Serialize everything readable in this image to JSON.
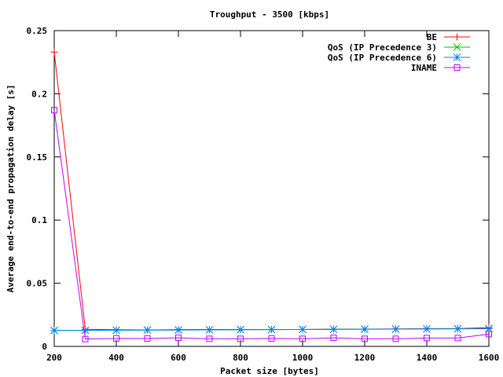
{
  "chart_data": {
    "type": "line",
    "title": "Troughput - 3500 [kbps]",
    "xlabel": "Packet size [bytes]",
    "ylabel": "Average end-to-end propagation delay [s]",
    "xlim": [
      200,
      1600
    ],
    "ylim": [
      0,
      0.25
    ],
    "x_ticks": [
      200,
      400,
      600,
      800,
      1000,
      1200,
      1400,
      1600
    ],
    "y_ticks": [
      0,
      0.05,
      0.1,
      0.15,
      0.2,
      0.25
    ],
    "x_tick_labels": [
      "200",
      "400",
      "600",
      "800",
      "1000",
      "1200",
      "1400",
      "1600"
    ],
    "y_tick_labels": [
      "0",
      "0.05",
      "0.1",
      "0.15",
      "0.2",
      "0.25"
    ],
    "legend_position": "top-right",
    "grid": false,
    "x": [
      200,
      300,
      400,
      500,
      600,
      700,
      800,
      900,
      1000,
      1100,
      1200,
      1300,
      1400,
      1500,
      1600
    ],
    "series": [
      {
        "name": "BE",
        "color": "#ff0000",
        "marker": "plus",
        "values": [
          0.233,
          0.0135,
          0.0132,
          0.013,
          0.0133,
          0.0134,
          0.0134,
          0.0134,
          0.0134,
          0.0136,
          0.0137,
          0.0138,
          0.0141,
          0.0141,
          0.0148
        ]
      },
      {
        "name": "QoS (IP Precedence 3)",
        "color": "#00c000",
        "marker": "cross",
        "values": [
          0.0126,
          0.0127,
          0.0128,
          0.0129,
          0.013,
          0.0131,
          0.0132,
          0.0133,
          0.0134,
          0.0135,
          0.0136,
          0.0137,
          0.0138,
          0.0139,
          0.014
        ]
      },
      {
        "name": "QoS (IP Precedence 6)",
        "color": "#0080ff",
        "marker": "star",
        "values": [
          0.0126,
          0.0127,
          0.0128,
          0.0129,
          0.013,
          0.0131,
          0.0132,
          0.0133,
          0.0134,
          0.0135,
          0.0136,
          0.0137,
          0.0138,
          0.0139,
          0.014
        ]
      },
      {
        "name": "INAME",
        "color": "#c000ff",
        "marker": "square",
        "values": [
          0.187,
          0.0058,
          0.0063,
          0.0062,
          0.0068,
          0.006,
          0.006,
          0.0063,
          0.006,
          0.0068,
          0.006,
          0.006,
          0.0066,
          0.0066,
          0.0097
        ]
      }
    ]
  }
}
